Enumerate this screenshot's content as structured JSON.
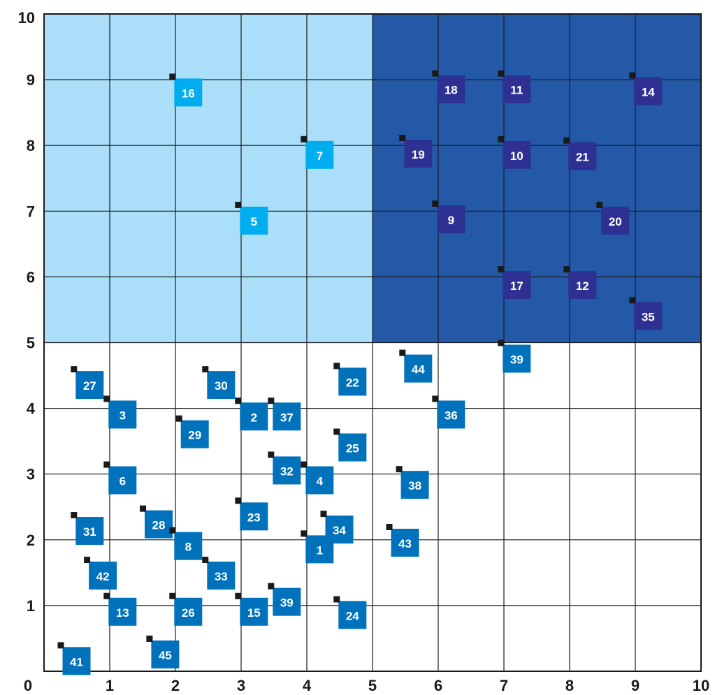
{
  "chart_data": {
    "type": "scatter",
    "title": "",
    "xlabel": "",
    "ylabel": "",
    "xlim": [
      0,
      10
    ],
    "ylim": [
      0,
      10
    ],
    "xticks": [
      "0",
      "1",
      "2",
      "3",
      "4",
      "5",
      "6",
      "7",
      "8",
      "9",
      "10"
    ],
    "yticks": [
      "10",
      "9",
      "8",
      "7",
      "6",
      "5",
      "4",
      "3",
      "2",
      "1"
    ],
    "grid": true,
    "regions": [
      {
        "x": [
          0,
          5
        ],
        "y": [
          5,
          10
        ],
        "color": "#abdff9"
      },
      {
        "x": [
          5,
          10
        ],
        "y": [
          5,
          10
        ],
        "color": "#2459a8"
      }
    ],
    "series": [
      {
        "color": "#00aeef",
        "points": [
          {
            "label": "16",
            "x": 1.95,
            "y": 9.05
          },
          {
            "label": "7",
            "x": 3.95,
            "y": 8.1
          },
          {
            "label": "5",
            "x": 2.95,
            "y": 7.1
          }
        ]
      },
      {
        "color": "#2e3192",
        "points": [
          {
            "label": "18",
            "x": 5.95,
            "y": 9.1
          },
          {
            "label": "11",
            "x": 6.95,
            "y": 9.1
          },
          {
            "label": "14",
            "x": 8.95,
            "y": 9.07
          },
          {
            "label": "19",
            "x": 5.45,
            "y": 8.12
          },
          {
            "label": "10",
            "x": 6.95,
            "y": 8.1
          },
          {
            "label": "21",
            "x": 7.95,
            "y": 8.08
          },
          {
            "label": "9",
            "x": 5.95,
            "y": 7.12
          },
          {
            "label": "20",
            "x": 8.45,
            "y": 7.1
          },
          {
            "label": "17",
            "x": 6.95,
            "y": 6.12
          },
          {
            "label": "12",
            "x": 7.95,
            "y": 6.12
          },
          {
            "label": "35",
            "x": 8.95,
            "y": 5.65
          }
        ]
      },
      {
        "color": "#0072bc",
        "points": [
          {
            "label": "39",
            "x": 6.95,
            "y": 5.0
          },
          {
            "label": "27",
            "x": 0.45,
            "y": 4.6
          },
          {
            "label": "30",
            "x": 2.45,
            "y": 4.6
          },
          {
            "label": "22",
            "x": 4.45,
            "y": 4.65
          },
          {
            "label": "44",
            "x": 5.45,
            "y": 4.85
          },
          {
            "label": "3",
            "x": 0.95,
            "y": 4.15
          },
          {
            "label": "2",
            "x": 2.95,
            "y": 4.12
          },
          {
            "label": "37",
            "x": 3.45,
            "y": 4.12
          },
          {
            "label": "36",
            "x": 5.95,
            "y": 4.15
          },
          {
            "label": "29",
            "x": 2.05,
            "y": 3.85
          },
          {
            "label": "25",
            "x": 4.45,
            "y": 3.65
          },
          {
            "label": "32",
            "x": 3.45,
            "y": 3.3
          },
          {
            "label": "6",
            "x": 0.95,
            "y": 3.15
          },
          {
            "label": "4",
            "x": 3.95,
            "y": 3.15
          },
          {
            "label": "38",
            "x": 5.4,
            "y": 3.08
          },
          {
            "label": "23",
            "x": 2.95,
            "y": 2.6
          },
          {
            "label": "28",
            "x": 1.5,
            "y": 2.48
          },
          {
            "label": "34",
            "x": 4.25,
            "y": 2.4
          },
          {
            "label": "31",
            "x": 0.45,
            "y": 2.38
          },
          {
            "label": "43",
            "x": 5.25,
            "y": 2.2
          },
          {
            "label": "8",
            "x": 1.95,
            "y": 2.15
          },
          {
            "label": "1",
            "x": 3.95,
            "y": 2.1
          },
          {
            "label": "42",
            "x": 0.65,
            "y": 1.7
          },
          {
            "label": "33",
            "x": 2.45,
            "y": 1.7
          },
          {
            "label": "39",
            "x": 3.45,
            "y": 1.3
          },
          {
            "label": "13",
            "x": 0.95,
            "y": 1.15
          },
          {
            "label": "26",
            "x": 1.95,
            "y": 1.15
          },
          {
            "label": "15",
            "x": 2.95,
            "y": 1.15
          },
          {
            "label": "24",
            "x": 4.45,
            "y": 1.1
          },
          {
            "label": "45",
            "x": 1.6,
            "y": 0.5
          },
          {
            "label": "41",
            "x": 0.25,
            "y": 0.4
          }
        ]
      }
    ]
  }
}
